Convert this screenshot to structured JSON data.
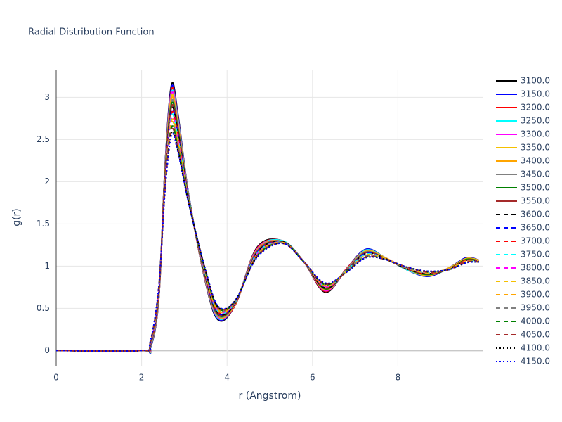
{
  "chart_data": {
    "type": "line",
    "title": "Radial Distribution Function",
    "x_label": "r (Angstrom)",
    "y_label": "g(r)",
    "x": [
      0,
      2,
      2.2,
      2.4,
      2.55,
      2.7,
      2.85,
      3.1,
      3.5,
      3.8,
      4.2,
      4.7,
      5.3,
      5.8,
      6.3,
      6.8,
      7.25,
      7.7,
      8.2,
      8.7,
      9.2,
      9.6,
      9.9
    ],
    "xlim": [
      0,
      10
    ],
    "xticks": [
      0,
      2,
      4,
      6,
      8
    ],
    "ylim": [
      -0.18,
      3.32
    ],
    "yticks": [
      0,
      0.5,
      1,
      1.5,
      2,
      2.5,
      3
    ],
    "grid": true,
    "legend": "right",
    "series": [
      {
        "name": "3100.0",
        "color": "#000000",
        "dash": "solid",
        "values": [
          0,
          0,
          0.02,
          0.6,
          2.2,
          3.15,
          2.8,
          1.85,
          0.8,
          0.36,
          0.55,
          1.22,
          1.3,
          1.05,
          0.69,
          0.97,
          1.2,
          1.1,
          0.96,
          0.88,
          0.98,
          1.1,
          1.07
        ]
      },
      {
        "name": "3150.0",
        "color": "#0000ff",
        "dash": "solid",
        "values": [
          0,
          0,
          0.02,
          0.61,
          2.19,
          3.12,
          2.78,
          1.85,
          0.81,
          0.37,
          0.55,
          1.21,
          1.3,
          1.05,
          0.7,
          0.97,
          1.2,
          1.1,
          0.96,
          0.88,
          0.98,
          1.1,
          1.07
        ]
      },
      {
        "name": "3200.0",
        "color": "#ff0000",
        "dash": "solid",
        "values": [
          0,
          0,
          0.03,
          0.61,
          2.17,
          3.09,
          2.76,
          1.84,
          0.81,
          0.38,
          0.55,
          1.21,
          1.3,
          1.05,
          0.7,
          0.97,
          1.19,
          1.1,
          0.96,
          0.89,
          0.98,
          1.09,
          1.07
        ]
      },
      {
        "name": "3250.0",
        "color": "#00ffff",
        "dash": "solid",
        "values": [
          0,
          0,
          0.03,
          0.62,
          2.16,
          3.06,
          2.74,
          1.84,
          0.82,
          0.38,
          0.56,
          1.2,
          1.3,
          1.05,
          0.71,
          0.96,
          1.19,
          1.1,
          0.96,
          0.89,
          0.98,
          1.09,
          1.07
        ]
      },
      {
        "name": "3300.0",
        "color": "#ff00ff",
        "dash": "solid",
        "values": [
          0,
          0,
          0.04,
          0.63,
          2.14,
          3.04,
          2.71,
          1.83,
          0.83,
          0.39,
          0.56,
          1.2,
          1.29,
          1.05,
          0.71,
          0.96,
          1.18,
          1.1,
          0.97,
          0.89,
          0.98,
          1.09,
          1.07
        ]
      },
      {
        "name": "3350.0",
        "color": "#f5c000",
        "dash": "solid",
        "values": [
          0,
          0,
          0.04,
          0.64,
          2.13,
          3.01,
          2.69,
          1.83,
          0.84,
          0.4,
          0.56,
          1.19,
          1.29,
          1.05,
          0.72,
          0.96,
          1.18,
          1.1,
          0.97,
          0.89,
          0.98,
          1.09,
          1.07
        ]
      },
      {
        "name": "3400.0",
        "color": "#ffa500",
        "dash": "solid",
        "values": [
          0,
          0,
          0.04,
          0.64,
          2.11,
          2.98,
          2.67,
          1.82,
          0.84,
          0.41,
          0.56,
          1.19,
          1.29,
          1.05,
          0.72,
          0.96,
          1.17,
          1.09,
          0.97,
          0.9,
          0.97,
          1.08,
          1.06
        ]
      },
      {
        "name": "3450.0",
        "color": "#808080",
        "dash": "solid",
        "values": [
          0,
          0,
          0.05,
          0.65,
          2.1,
          2.95,
          2.65,
          1.82,
          0.85,
          0.41,
          0.57,
          1.18,
          1.29,
          1.05,
          0.73,
          0.96,
          1.17,
          1.09,
          0.97,
          0.9,
          0.97,
          1.08,
          1.06
        ]
      },
      {
        "name": "3500.0",
        "color": "#008000",
        "dash": "solid",
        "values": [
          0,
          0,
          0.05,
          0.66,
          2.09,
          2.92,
          2.63,
          1.81,
          0.86,
          0.42,
          0.57,
          1.17,
          1.29,
          1.05,
          0.73,
          0.95,
          1.16,
          1.09,
          0.97,
          0.9,
          0.97,
          1.08,
          1.06
        ]
      },
      {
        "name": "3550.0",
        "color": "#a52a2a",
        "dash": "solid",
        "values": [
          0,
          0,
          0.05,
          0.66,
          2.07,
          2.89,
          2.61,
          1.81,
          0.86,
          0.43,
          0.57,
          1.17,
          1.29,
          1.05,
          0.74,
          0.95,
          1.16,
          1.09,
          0.97,
          0.91,
          0.97,
          1.07,
          1.06
        ]
      },
      {
        "name": "3600.0",
        "color": "#000000",
        "dash": "dash",
        "values": [
          0,
          0,
          0.06,
          0.67,
          2.06,
          2.86,
          2.59,
          1.8,
          0.87,
          0.44,
          0.57,
          1.16,
          1.29,
          1.05,
          0.74,
          0.95,
          1.15,
          1.09,
          0.97,
          0.91,
          0.97,
          1.07,
          1.06
        ]
      },
      {
        "name": "3650.0",
        "color": "#0000ff",
        "dash": "dash",
        "values": [
          0,
          0,
          0.06,
          0.68,
          2.04,
          2.84,
          2.56,
          1.8,
          0.88,
          0.44,
          0.58,
          1.16,
          1.28,
          1.05,
          0.75,
          0.95,
          1.15,
          1.09,
          0.98,
          0.91,
          0.97,
          1.07,
          1.06
        ]
      },
      {
        "name": "3700.0",
        "color": "#ff0000",
        "dash": "dash",
        "values": [
          0,
          0,
          0.07,
          0.69,
          2.03,
          2.81,
          2.54,
          1.79,
          0.89,
          0.45,
          0.58,
          1.15,
          1.28,
          1.05,
          0.75,
          0.95,
          1.14,
          1.09,
          0.98,
          0.91,
          0.97,
          1.07,
          1.06
        ]
      },
      {
        "name": "3750.0",
        "color": "#00ffff",
        "dash": "dash",
        "values": [
          0,
          0,
          0.07,
          0.69,
          2.01,
          2.78,
          2.52,
          1.79,
          0.89,
          0.46,
          0.58,
          1.15,
          1.28,
          1.05,
          0.76,
          0.95,
          1.14,
          1.09,
          0.98,
          0.92,
          0.97,
          1.06,
          1.06
        ]
      },
      {
        "name": "3800.0",
        "color": "#ff00ff",
        "dash": "dash",
        "values": [
          0,
          0,
          0.07,
          0.7,
          2.0,
          2.75,
          2.5,
          1.78,
          0.9,
          0.47,
          0.58,
          1.14,
          1.28,
          1.05,
          0.76,
          0.94,
          1.13,
          1.09,
          0.98,
          0.92,
          0.97,
          1.06,
          1.06
        ]
      },
      {
        "name": "3850.0",
        "color": "#f5c000",
        "dash": "dash",
        "values": [
          0,
          0,
          0.08,
          0.71,
          1.99,
          2.72,
          2.48,
          1.78,
          0.91,
          0.47,
          0.59,
          1.13,
          1.28,
          1.05,
          0.77,
          0.94,
          1.13,
          1.09,
          0.98,
          0.92,
          0.97,
          1.06,
          1.06
        ]
      },
      {
        "name": "3900.0",
        "color": "#ffa500",
        "dash": "dash",
        "values": [
          0,
          0,
          0.08,
          0.71,
          1.97,
          2.69,
          2.46,
          1.77,
          0.91,
          0.48,
          0.59,
          1.13,
          1.28,
          1.05,
          0.77,
          0.94,
          1.12,
          1.08,
          0.98,
          0.93,
          0.96,
          1.05,
          1.05
        ]
      },
      {
        "name": "3950.0",
        "color": "#808080",
        "dash": "dash",
        "values": [
          0,
          0,
          0.08,
          0.72,
          1.96,
          2.66,
          2.44,
          1.77,
          0.92,
          0.49,
          0.59,
          1.12,
          1.28,
          1.05,
          0.78,
          0.94,
          1.12,
          1.08,
          0.98,
          0.93,
          0.96,
          1.05,
          1.05
        ]
      },
      {
        "name": "4000.0",
        "color": "#008000",
        "dash": "dash",
        "values": [
          0,
          0,
          0.09,
          0.73,
          1.94,
          2.64,
          2.41,
          1.76,
          0.93,
          0.5,
          0.59,
          1.12,
          1.27,
          1.05,
          0.78,
          0.94,
          1.11,
          1.08,
          0.99,
          0.93,
          0.96,
          1.05,
          1.05
        ]
      },
      {
        "name": "4050.0",
        "color": "#a52a2a",
        "dash": "dash",
        "values": [
          0,
          0,
          0.09,
          0.74,
          1.93,
          2.61,
          2.39,
          1.76,
          0.94,
          0.5,
          0.6,
          1.11,
          1.27,
          1.05,
          0.79,
          0.93,
          1.11,
          1.08,
          0.99,
          0.93,
          0.96,
          1.05,
          1.05
        ]
      },
      {
        "name": "4100.0",
        "color": "#000000",
        "dash": "dot",
        "values": [
          0,
          0,
          0.1,
          0.74,
          1.91,
          2.58,
          2.37,
          1.75,
          0.94,
          0.51,
          0.6,
          1.11,
          1.27,
          1.05,
          0.79,
          0.93,
          1.1,
          1.08,
          0.99,
          0.94,
          0.96,
          1.04,
          1.05
        ]
      },
      {
        "name": "4150.0",
        "color": "#0000ff",
        "dash": "dot",
        "values": [
          0,
          0,
          0.1,
          0.75,
          1.9,
          2.55,
          2.35,
          1.75,
          0.95,
          0.52,
          0.6,
          1.1,
          1.27,
          1.05,
          0.8,
          0.93,
          1.1,
          1.08,
          0.99,
          0.94,
          0.96,
          1.04,
          1.05
        ]
      }
    ]
  }
}
